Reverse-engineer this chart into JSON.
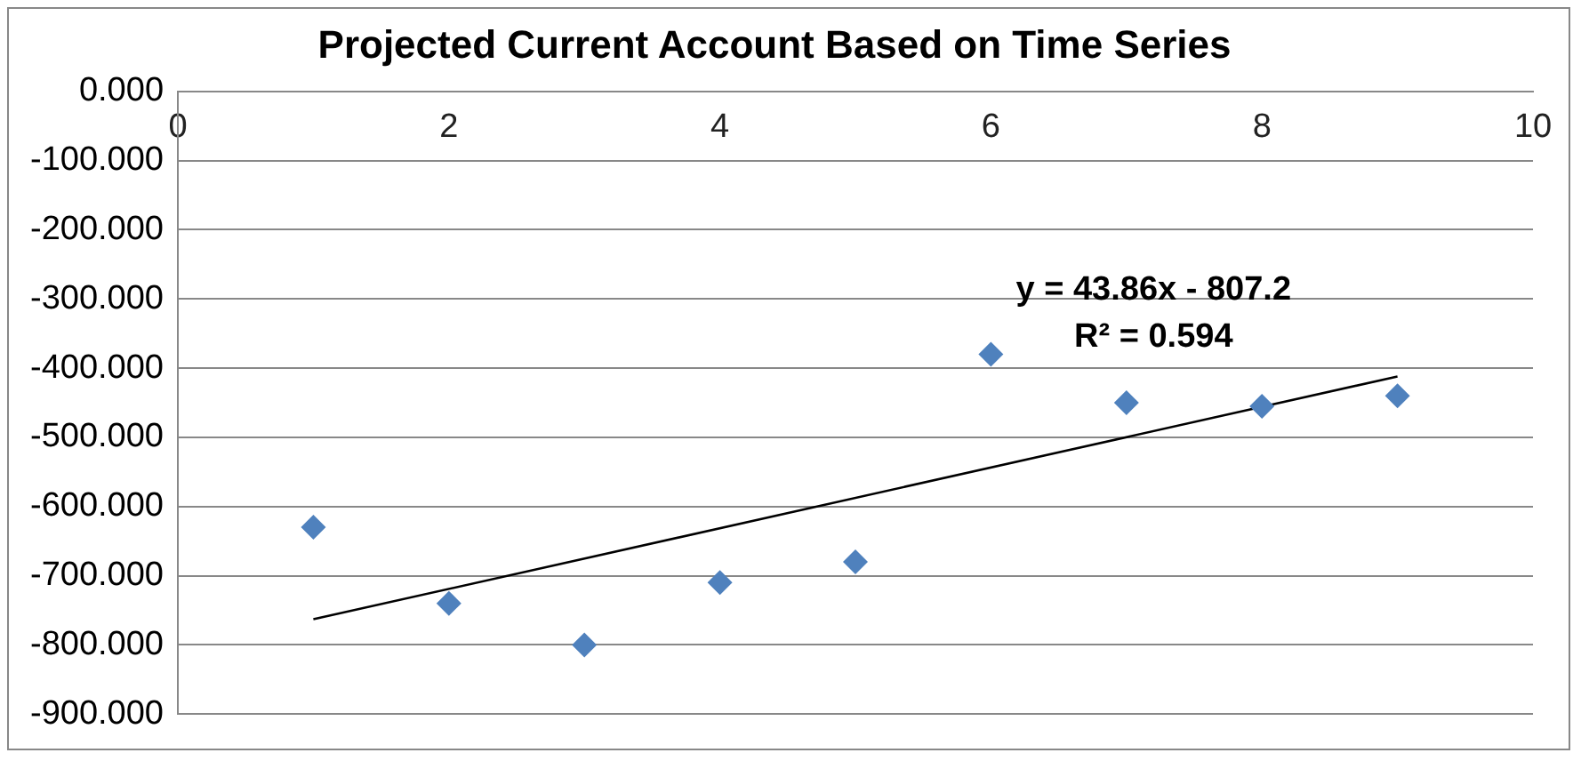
{
  "chart_data": {
    "type": "scatter",
    "title": "Projected Current Account Based on Time Series",
    "x": [
      1,
      2,
      3,
      4,
      5,
      6,
      7,
      8,
      9
    ],
    "series": [
      {
        "type": "scatter",
        "color": "#4f81bd",
        "marker": "diamond",
        "values": [
          -630,
          -740,
          -800,
          -710,
          -680,
          -380,
          -450,
          -455,
          -440
        ]
      },
      {
        "type": "line",
        "color": "#000000",
        "marker": "none",
        "x": [
          1,
          9
        ],
        "values": [
          -763,
          -412
        ]
      }
    ],
    "xlim": [
      0,
      10
    ],
    "xticks": [
      0,
      2,
      4,
      6,
      8,
      10
    ],
    "ylim": [
      -900,
      0
    ],
    "yticks": [
      {
        "value": 0,
        "label": "0.000"
      },
      {
        "value": -100,
        "label": "-100.000"
      },
      {
        "value": -200,
        "label": "-200.000"
      },
      {
        "value": -300,
        "label": "-300.000"
      },
      {
        "value": -400,
        "label": "-400.000"
      },
      {
        "value": -500,
        "label": "-500.000"
      },
      {
        "value": -600,
        "label": "-600.000"
      },
      {
        "value": -700,
        "label": "-700.000"
      },
      {
        "value": -800,
        "label": "-800.000"
      },
      {
        "value": -900,
        "label": "-900.000"
      }
    ],
    "grid": "y",
    "annotations": [
      "y = 43.86x - 807.2",
      "R² = 0.594"
    ]
  }
}
